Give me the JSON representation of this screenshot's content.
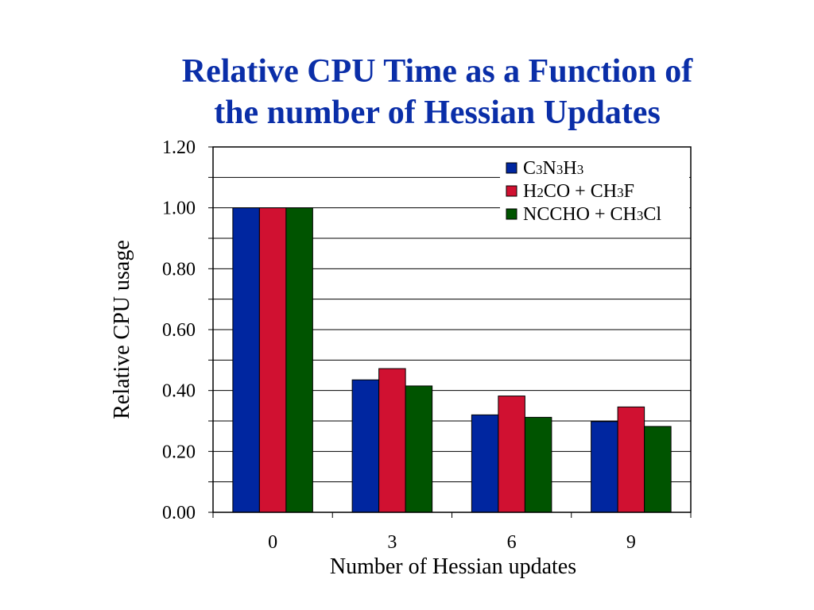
{
  "slide": {
    "title_line1": "Relative CPU Time as a Function of",
    "title_line2": "the number of Hessian Updates"
  },
  "chart_data": {
    "type": "bar",
    "title": "Relative CPU Time as a Function of the number of Hessian Updates",
    "xlabel": "Number of Hessian updates",
    "ylabel": "Relative CPU usage",
    "categories": [
      "0",
      "3",
      "6",
      "9"
    ],
    "ylim": [
      0,
      1.2
    ],
    "yticks": [
      "0.00",
      "0.20",
      "0.40",
      "0.60",
      "0.80",
      "1.00",
      "1.20"
    ],
    "grid": true,
    "legend_position": "top-right",
    "series": [
      {
        "name": "C3N3H3",
        "color": "#0026a0",
        "values": [
          1.0,
          0.435,
          0.32,
          0.298
        ]
      },
      {
        "name": "H2CO + CH3F",
        "color": "#d01131",
        "values": [
          1.0,
          0.472,
          0.382,
          0.346
        ]
      },
      {
        "name": "NCCHO + CH3Cl",
        "color": "#005400",
        "values": [
          1.0,
          0.415,
          0.312,
          0.282
        ]
      }
    ]
  }
}
